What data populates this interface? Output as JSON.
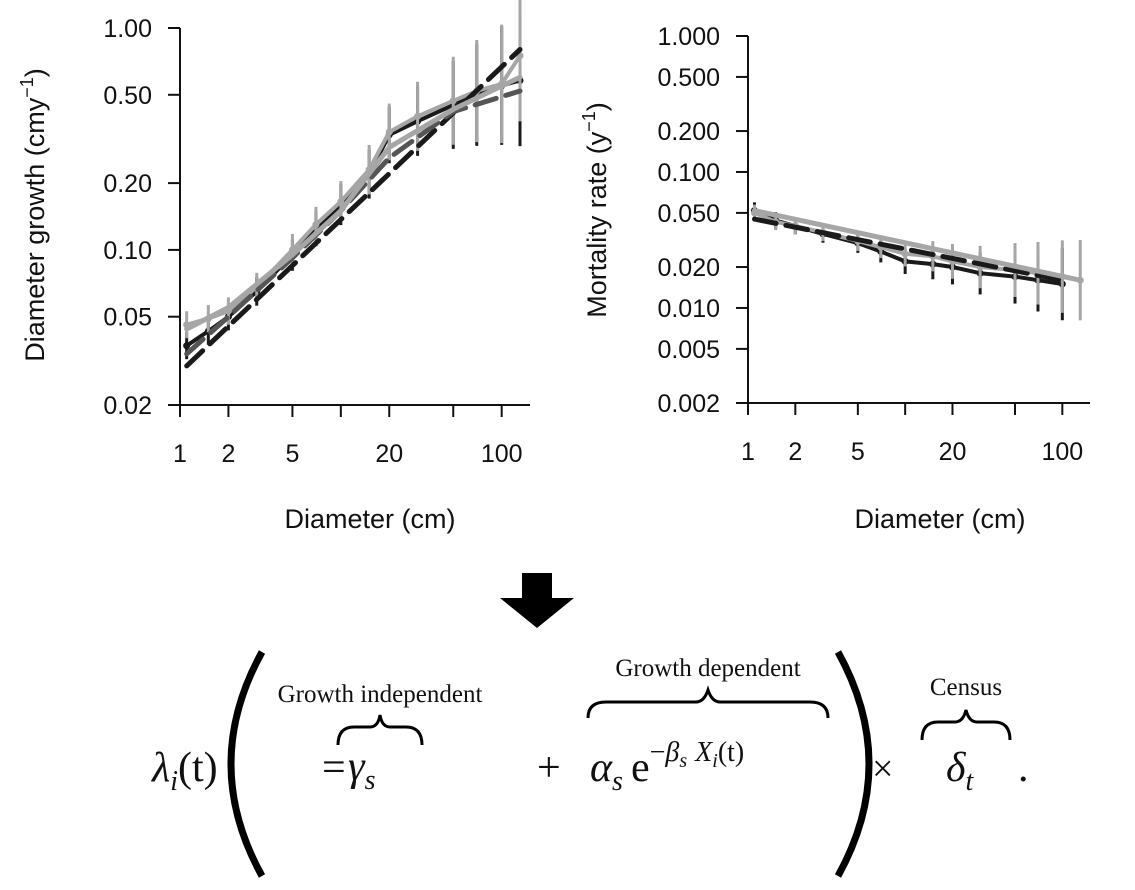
{
  "chart_data": [
    {
      "type": "line",
      "xlabel": "Diameter (cm)",
      "ylabel_main": "Diameter growth (cmy",
      "ylabel_sup": "−1",
      "ylabel_close": ")",
      "x_scale": "log",
      "y_scale": "log",
      "xlim": [
        1,
        150
      ],
      "ylim": [
        0.02,
        1.0
      ],
      "x_ticks": [
        1,
        2,
        5,
        10,
        20,
        50,
        100
      ],
      "x_tick_labels": [
        "1",
        "2",
        "5",
        "",
        "20",
        "",
        "100"
      ],
      "y_ticks": [
        0.02,
        0.05,
        0.1,
        0.2,
        0.5,
        1.0
      ],
      "y_tick_labels": [
        "0.02",
        "0.05",
        "0.10",
        "0.20",
        "0.50",
        "1.00"
      ],
      "grid": false,
      "series": [
        {
          "color": "#1a1a1a",
          "style": "observed",
          "x": [
            1.1,
            1.5,
            2,
            3,
            5,
            7,
            10,
            15,
            20,
            30,
            50,
            70,
            100,
            130
          ],
          "y": [
            0.037,
            0.043,
            0.05,
            0.065,
            0.095,
            0.125,
            0.16,
            0.22,
            0.33,
            0.38,
            0.45,
            0.5,
            0.55,
            0.58
          ]
        },
        {
          "color": "#a6a6a6",
          "style": "observed",
          "x": [
            1.1,
            1.5,
            2,
            3,
            5,
            7,
            10,
            15,
            20,
            30,
            50,
            70,
            100,
            130
          ],
          "y": [
            0.046,
            0.049,
            0.053,
            0.068,
            0.1,
            0.13,
            0.165,
            0.23,
            0.34,
            0.4,
            0.47,
            0.52,
            0.56,
            0.75
          ]
        },
        {
          "color": "#1a1a1a",
          "style": "fit-dashed",
          "x": [
            1.1,
            130
          ],
          "y": [
            0.03,
            0.8
          ]
        },
        {
          "color": "#555555",
          "style": "fit-dashed",
          "x": [
            1.1,
            2,
            5,
            10,
            20,
            50,
            130
          ],
          "y": [
            0.034,
            0.05,
            0.092,
            0.15,
            0.26,
            0.42,
            0.52
          ]
        },
        {
          "color": "#a6a6a6",
          "style": "fit-solid",
          "x": [
            1.1,
            2,
            5,
            10,
            20,
            50,
            130
          ],
          "y": [
            0.044,
            0.055,
            0.095,
            0.15,
            0.29,
            0.43,
            0.6
          ]
        }
      ]
    },
    {
      "type": "line",
      "xlabel": "Diameter (cm)",
      "ylabel_main": "Mortality rate (y",
      "ylabel_sup": "−1",
      "ylabel_close": ")",
      "x_scale": "log",
      "y_scale": "log",
      "xlim": [
        1,
        150
      ],
      "ylim": [
        0.002,
        1.0
      ],
      "x_ticks": [
        1,
        2,
        5,
        10,
        20,
        50,
        100
      ],
      "x_tick_labels": [
        "1",
        "2",
        "5",
        "",
        "20",
        "",
        "100"
      ],
      "y_ticks": [
        0.002,
        0.005,
        0.01,
        0.02,
        0.05,
        0.1,
        0.2,
        0.5,
        1.0
      ],
      "y_tick_labels": [
        "0.002",
        "0.005",
        "0.010",
        "0.020",
        "0.050",
        "0.100",
        "0.200",
        "0.500",
        "1.000"
      ],
      "grid": false,
      "series": [
        {
          "color": "#1a1a1a",
          "style": "observed",
          "x": [
            1.1,
            1.5,
            2,
            3,
            5,
            7,
            10,
            15,
            20,
            30,
            50,
            70,
            100
          ],
          "y": [
            0.052,
            0.044,
            0.04,
            0.035,
            0.03,
            0.026,
            0.022,
            0.021,
            0.02,
            0.018,
            0.017,
            0.016,
            0.015
          ]
        },
        {
          "color": "#a6a6a6",
          "style": "observed",
          "x": [
            1.1,
            1.5,
            2,
            3,
            5,
            7,
            10,
            15,
            20,
            30,
            50,
            70,
            100,
            130
          ],
          "y": [
            0.05,
            0.043,
            0.04,
            0.036,
            0.031,
            0.028,
            0.025,
            0.024,
            0.022,
            0.02,
            0.019,
            0.018,
            0.017,
            0.016
          ]
        },
        {
          "color": "#1a1a1a",
          "style": "fit-dashed",
          "x": [
            1.1,
            100
          ],
          "y": [
            0.045,
            0.016
          ]
        },
        {
          "color": "#a6a6a6",
          "style": "fit-solid",
          "x": [
            1.1,
            130
          ],
          "y": [
            0.052,
            0.016
          ]
        }
      ]
    }
  ],
  "equation": {
    "lhs_symbol": "λ",
    "lhs_sub": "i",
    "lhs_arg": "(t)",
    "equals": "=",
    "brace_label_1": "Growth independent",
    "brace_label_2": "Growth dependent",
    "brace_label_3": "Census",
    "gamma": "γ",
    "gamma_sub": "s",
    "plus": "+",
    "alpha": "α",
    "alpha_sub": "s",
    "exp_e": "e",
    "exp_minus": "−",
    "exp_beta": "β",
    "exp_beta_sub": "s",
    "exp_X": "X",
    "exp_X_sub": "i",
    "exp_X_arg": "(t)",
    "times": "×",
    "delta": "δ",
    "delta_sub": "t",
    "period": "."
  },
  "colors": {
    "dark": "#1a1a1a",
    "light": "#a6a6a6",
    "arrow": "#000000"
  },
  "icons": {
    "arrow": "down-arrow-icon"
  }
}
